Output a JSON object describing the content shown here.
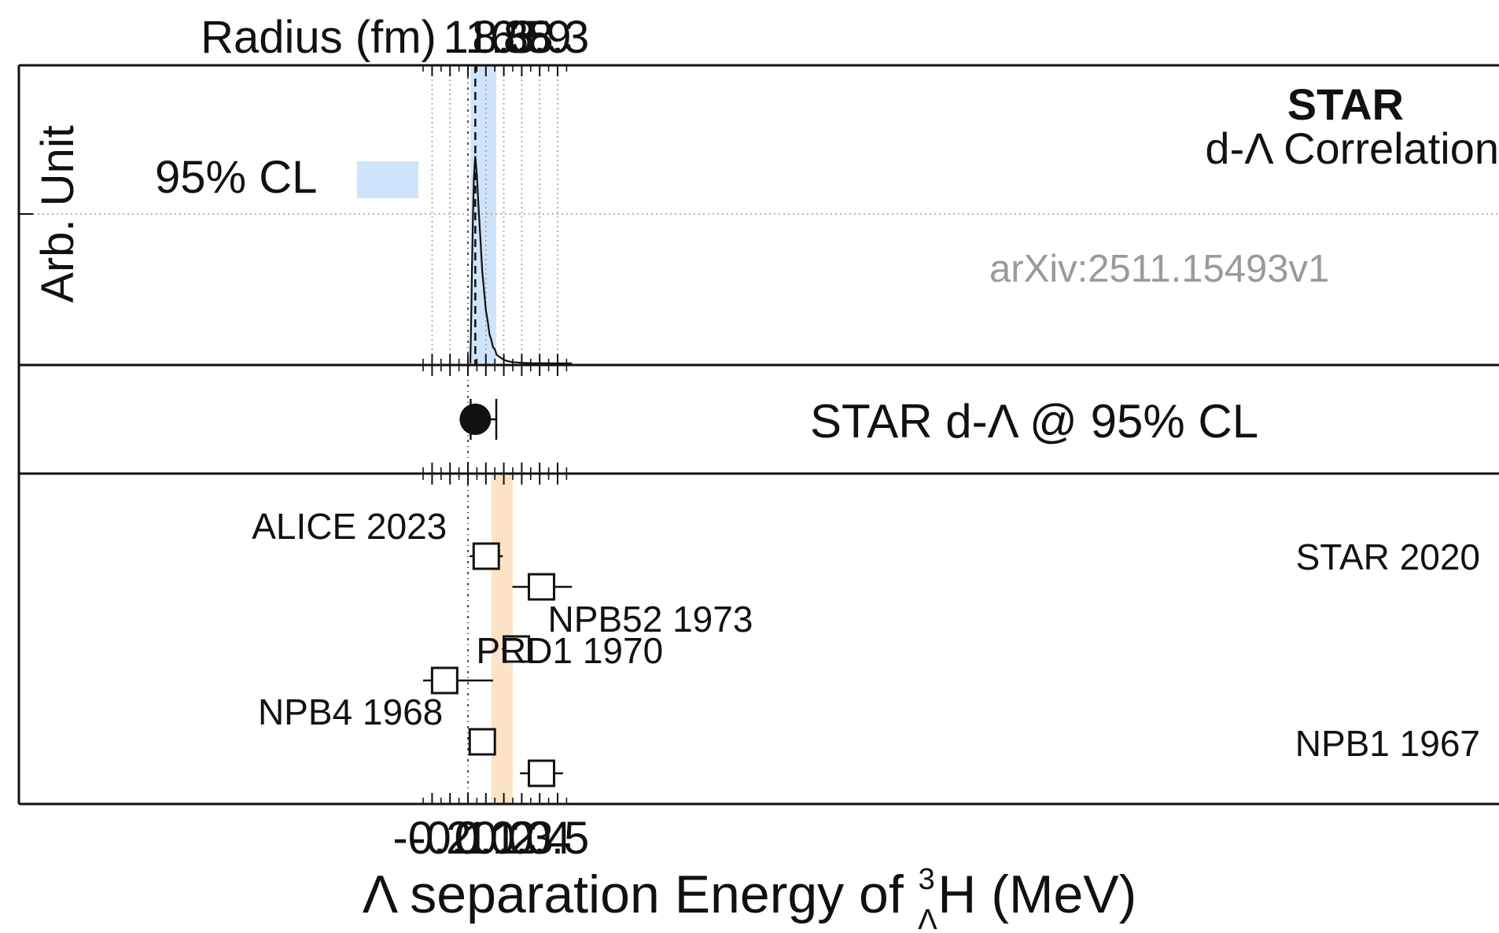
{
  "chart_data": {
    "type": "scatter",
    "xlabel": "Λ separation Energy of ³ΛH (MeV)",
    "xlabel_parts": {
      "prefix": "Λ separation Energy of ",
      "mass_number": "3",
      "hyperon": "Λ",
      "element": "H",
      "suffix": " (MeV)"
    },
    "xlim": [
      -0.25,
      0.58
    ],
    "x_ticks": [
      -0.2,
      -0.1,
      0,
      0.1,
      0.2,
      0.3,
      0.4,
      0.5
    ],
    "x_tick_labels": [
      "-0.2",
      "-0.1",
      "0",
      "0.1",
      "0.2",
      "0.3",
      "0.4",
      "0.5"
    ],
    "top_axis": {
      "label": "Radius (fm)",
      "ticks": [
        {
          "x": 0.1,
          "label": "11.8"
        },
        {
          "x": 0.2,
          "label": "8.3"
        },
        {
          "x": 0.3,
          "label": "6.8"
        },
        {
          "x": 0.4,
          "label": "5.9"
        },
        {
          "x": 0.5,
          "label": "5.3"
        }
      ]
    },
    "grid": true,
    "panels": [
      {
        "id": "distribution",
        "type": "area",
        "ylabel": "Arb. Unit",
        "ylim": [
          0,
          1.0
        ],
        "title": "STAR",
        "subtitle": "d-Λ Correlation",
        "legend": {
          "label": "95% CL",
          "color": "#cfe4fa",
          "placement": "top-left"
        },
        "cl_band": [
          0.015,
          0.158
        ],
        "peak_x": 0.041,
        "distribution": {
          "x": [
            0.013,
            0.018,
            0.023,
            0.028,
            0.033,
            0.038,
            0.041,
            0.045,
            0.05,
            0.06,
            0.07,
            0.08,
            0.09,
            0.1,
            0.11,
            0.12,
            0.13,
            0.14,
            0.15,
            0.16,
            0.18,
            0.2,
            0.22,
            0.25,
            0.3,
            0.35,
            0.4,
            0.5,
            0.58
          ],
          "y": [
            0.0,
            0.2,
            0.45,
            0.68,
            0.84,
            0.93,
            0.95,
            0.92,
            0.86,
            0.71,
            0.56,
            0.43,
            0.33,
            0.25,
            0.19,
            0.14,
            0.105,
            0.08,
            0.06,
            0.045,
            0.028,
            0.017,
            0.011,
            0.006,
            0.003,
            0.0015,
            0.001,
            0.0004,
            0.0002
          ]
        },
        "watermark": "arXiv:2511.15493v1"
      },
      {
        "id": "star-result",
        "type": "scatter",
        "label": "STAR d-Λ @ 95% CL",
        "point": {
          "x": 0.041,
          "xerr_low": 0.015,
          "xerr_high": 0.158
        }
      },
      {
        "id": "previous-measurements",
        "type": "scatter",
        "band": {
          "range": [
            0.13,
            0.25
          ],
          "color": "#fce3c8"
        },
        "measurements": [
          {
            "label": "ALICE 2023",
            "x": 0.102,
            "low": 0.01,
            "high": 0.194,
            "label_pos": "left"
          },
          {
            "label": "STAR 2020",
            "x": 0.41,
            "low": 0.248,
            "high": 0.58,
            "label_pos": "right"
          },
          {
            "label": "NPB52 1973",
            "x": 0.27,
            "low": 0.19,
            "high": 0.35,
            "label_pos": "right"
          },
          {
            "label": "PRD1 1970",
            "x": -0.13,
            "low": -0.25,
            "high": 0.14,
            "label_pos": "right"
          },
          {
            "label": "NPB4 1968",
            "x": 0.08,
            "low": 0.01,
            "high": 0.15,
            "label_pos": "left"
          },
          {
            "label": "NPB1 1967",
            "x": 0.41,
            "low": 0.29,
            "high": 0.53,
            "label_pos": "right"
          }
        ]
      }
    ],
    "colors": {
      "cl_band": "#cfe4fa",
      "avg_band": "#fce3c8",
      "line": "#111111",
      "grid": "#9a9a9a",
      "watermark": "#9a9a9a"
    }
  }
}
